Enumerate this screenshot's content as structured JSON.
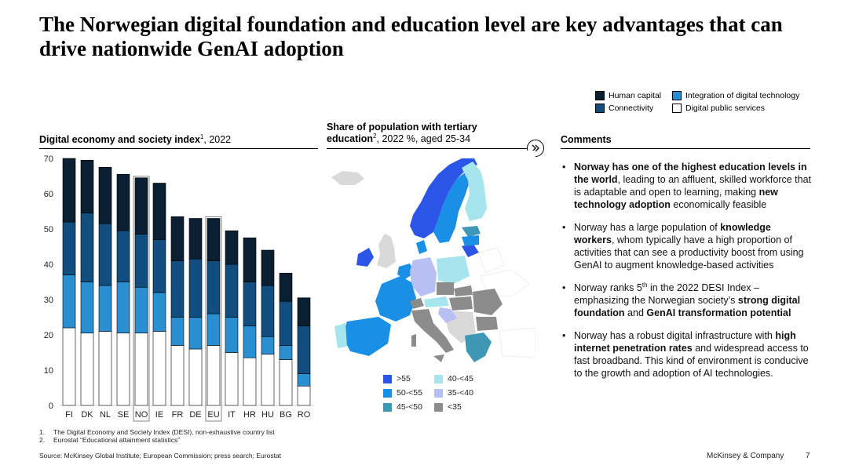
{
  "title": "The Norwegian digital foundation and education level are key advantages that can drive nationwide GenAI adoption",
  "legend_top": [
    {
      "label": "Human capital",
      "color": "#0b1f33"
    },
    {
      "label": "Integration of digital technology",
      "color": "#2a8fd0"
    },
    {
      "label": "Connectivity",
      "color": "#114d7e"
    },
    {
      "label": "Digital public services",
      "color": "#ffffff"
    }
  ],
  "left_title": {
    "bold": "Digital economy and society index",
    "sup": "1",
    "rest": ", 2022"
  },
  "map_title": {
    "line1": "Share of population with tertiary",
    "bold2": "education",
    "sup": "2",
    "rest2": ", 2022 %, aged 25-34"
  },
  "comments_title": "Comments",
  "chevron_icon": "double-chevron-right",
  "map_legend": [
    {
      "label": ">55",
      "color": "#2b55e6"
    },
    {
      "label": "40-<45",
      "color": "#a6e4ee"
    },
    {
      "label": "50-<55",
      "color": "#1a8fe6"
    },
    {
      "label": "35-<40",
      "color": "#b8bff2"
    },
    {
      "label": "45-<50",
      "color": "#3f97b6"
    },
    {
      "label": "<35",
      "color": "#8c8c8c"
    }
  ],
  "comments": [
    {
      "parts": [
        {
          "b": true,
          "t": "Norway has one of the highest education levels in the world"
        },
        {
          "b": false,
          "t": ", leading to an affluent, skilled workforce that is adaptable and open to learning, making "
        },
        {
          "b": true,
          "t": "new technology adoption"
        },
        {
          "b": false,
          "t": " economically feasible"
        }
      ]
    },
    {
      "parts": [
        {
          "b": false,
          "t": "Norway has a large population of "
        },
        {
          "b": true,
          "t": "knowledge workers"
        },
        {
          "b": false,
          "t": ", whom typically have a high proportion of activities that can see a productivity boost from using GenAI to augment knowledge-based activities"
        }
      ]
    },
    {
      "parts": [
        {
          "b": false,
          "t": "Norway ranks 5"
        },
        {
          "sup": true,
          "t": "th"
        },
        {
          "b": false,
          "t": " in the 2022 DESI Index – emphasizing the Norwegian society’s "
        },
        {
          "b": true,
          "t": "strong digital foundation"
        },
        {
          "b": false,
          "t": " and "
        },
        {
          "b": true,
          "t": "GenAI transformation potential"
        }
      ]
    },
    {
      "parts": [
        {
          "b": false,
          "t": "Norway has a robust digital infrastructure with "
        },
        {
          "b": true,
          "t": "high internet penetration rates"
        },
        {
          "b": false,
          "t": " and widespread access to fast broadband. This kind of environment is conducive to the growth and adoption of AI technologies."
        }
      ]
    }
  ],
  "footnotes": [
    {
      "num": "1.",
      "text": "The Digital Economy and Society Index (DESI), non-exhaustive country list"
    },
    {
      "num": "2.",
      "text": "Eurostat “Educational attainment statistics”"
    }
  ],
  "source": "Source: McKinsey Global Institute; European Commission; press search; Eurostat",
  "brand": "McKinsey & Company",
  "page_number": "7",
  "chart_data": {
    "type": "bar",
    "stacked": true,
    "title": "Digital economy and society index¹, 2022",
    "categories": [
      "FI",
      "DK",
      "NL",
      "SE",
      "NO",
      "IE",
      "FR",
      "DE",
      "EU",
      "IT",
      "HR",
      "HU",
      "BG",
      "RO"
    ],
    "highlighted": [
      "NO",
      "EU"
    ],
    "yticks": [
      0,
      10,
      20,
      30,
      40,
      50,
      60,
      70
    ],
    "ylim": [
      0,
      70
    ],
    "grid": false,
    "series": [
      {
        "name": "Digital public services",
        "color": "#ffffff",
        "values": [
          22,
          20.5,
          21,
          20.5,
          20.5,
          21,
          17,
          16,
          17,
          15,
          13.5,
          14.5,
          13,
          5.5
        ]
      },
      {
        "name": "Integration of digital technology",
        "color": "#2a8fd0",
        "values": [
          15,
          14.5,
          13,
          14.5,
          13,
          11,
          8,
          9,
          9,
          10,
          9,
          5,
          4,
          3.5
        ]
      },
      {
        "name": "Connectivity",
        "color": "#114d7e",
        "values": [
          15,
          19.5,
          17.5,
          14.5,
          15,
          15,
          16,
          16.5,
          15,
          15,
          12.5,
          14.5,
          12.5,
          13.5
        ]
      },
      {
        "name": "Human capital",
        "color": "#0b1f33",
        "values": [
          18,
          15,
          16,
          16,
          16,
          16,
          12.5,
          11.5,
          12,
          9.5,
          12.5,
          10,
          8,
          8
        ]
      }
    ]
  }
}
